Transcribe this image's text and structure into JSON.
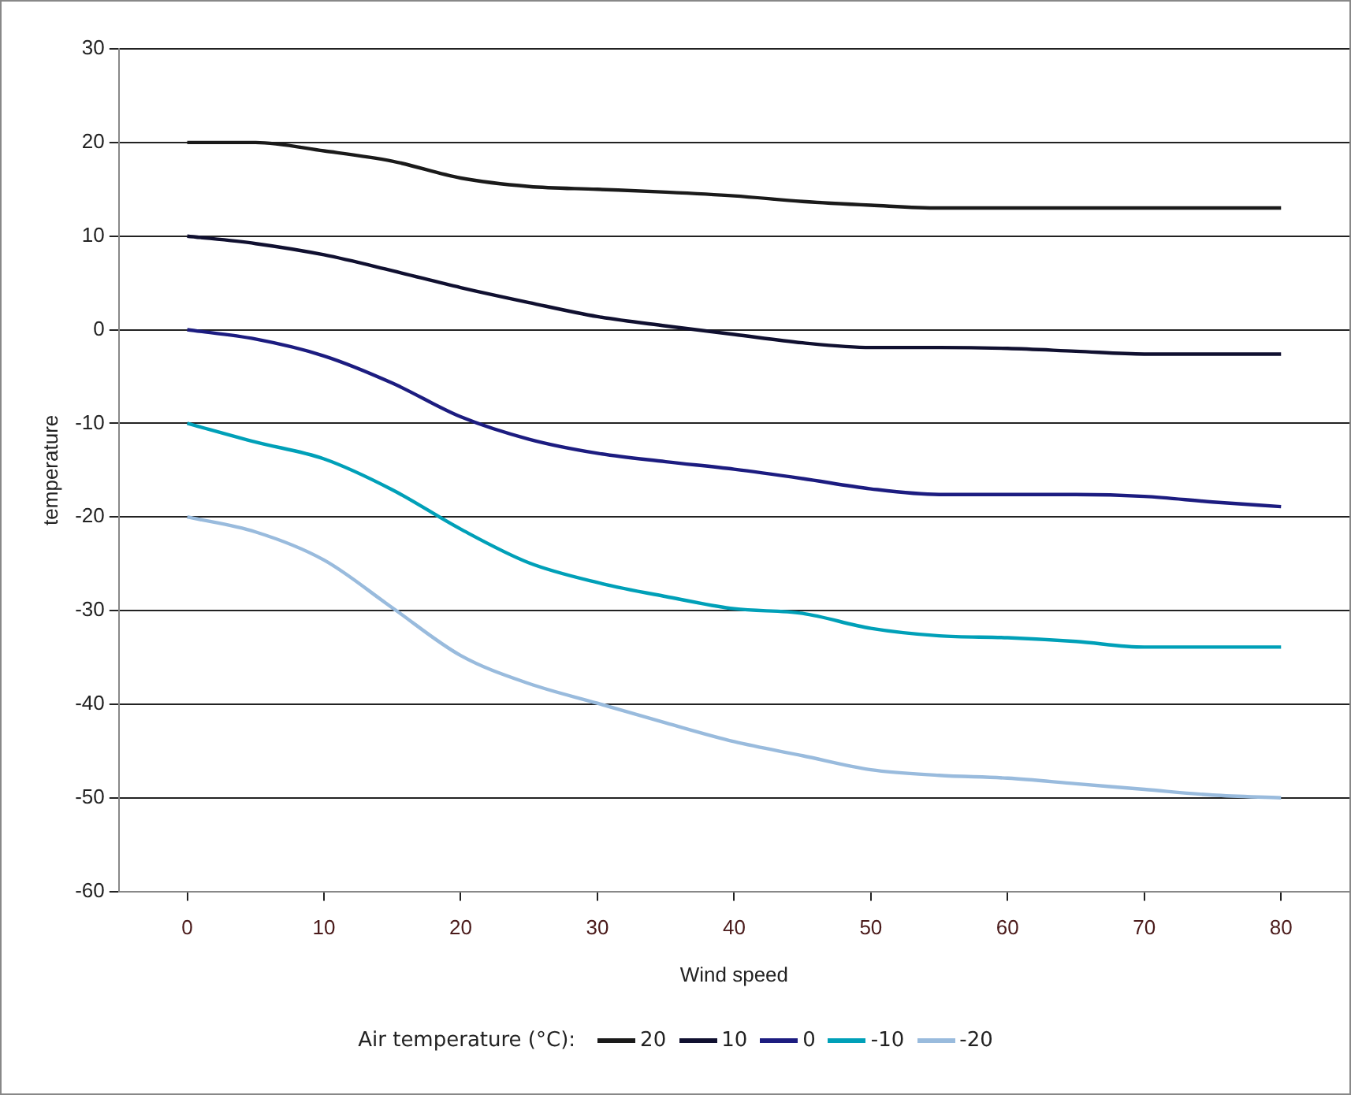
{
  "chart_data": {
    "type": "line",
    "xlabel": "Wind speed",
    "ylabel": "temperature",
    "legend_title": "Air temperature (°C):",
    "x": [
      0,
      5,
      10,
      15,
      20,
      25,
      30,
      35,
      40,
      45,
      50,
      55,
      60,
      65,
      70,
      75,
      80
    ],
    "xlim": [
      -5,
      85
    ],
    "xticks": [
      0,
      10,
      20,
      30,
      40,
      50,
      60,
      70,
      80
    ],
    "ylim": [
      -60,
      30
    ],
    "yticks": [
      -60,
      -50,
      -40,
      -30,
      -20,
      -10,
      0,
      10,
      20,
      30
    ],
    "grid": "y",
    "legend": "bottom",
    "marker": "none",
    "line_style": "solid",
    "series": [
      {
        "name": "20",
        "color": "#1a1a1a",
        "values": [
          20,
          20,
          19.1,
          18,
          16.2,
          15.3,
          15,
          14.7,
          14.3,
          13.7,
          13.3,
          13,
          13,
          13,
          13,
          13,
          13
        ]
      },
      {
        "name": "10",
        "color": "#101030",
        "values": [
          10,
          9.2,
          8,
          6.3,
          4.5,
          2.9,
          1.4,
          0.4,
          -0.5,
          -1.4,
          -1.9,
          -1.9,
          -2,
          -2.3,
          -2.6,
          -2.6,
          -2.6
        ]
      },
      {
        "name": "0",
        "color": "#1c1c80",
        "values": [
          0,
          -1,
          -2.8,
          -5.7,
          -9.3,
          -11.7,
          -13.2,
          -14.1,
          -14.9,
          -15.9,
          -17,
          -17.6,
          -17.6,
          -17.6,
          -17.8,
          -18.4,
          -18.9
        ]
      },
      {
        "name": "-10",
        "color": "#00a0b8",
        "values": [
          -10,
          -12,
          -13.8,
          -17.1,
          -21.3,
          -24.9,
          -27,
          -28.5,
          -29.8,
          -30.3,
          -31.9,
          -32.7,
          -32.9,
          -33.3,
          -33.9,
          -33.9,
          -33.9
        ]
      },
      {
        "name": "-20",
        "color": "#99bbdd",
        "values": [
          -20,
          -21.6,
          -24.6,
          -29.7,
          -34.8,
          -37.8,
          -39.9,
          -42,
          -44,
          -45.5,
          -47,
          -47.6,
          -47.9,
          -48.5,
          -49.1,
          -49.7,
          -50
        ]
      }
    ]
  }
}
